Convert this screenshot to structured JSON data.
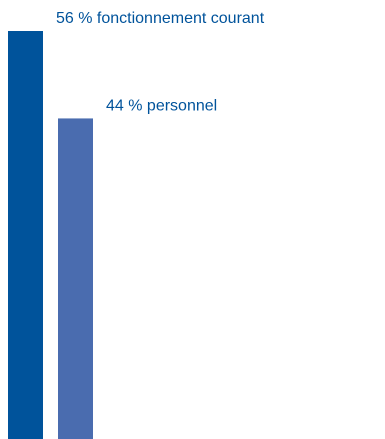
{
  "chart_data": {
    "type": "bar",
    "orientation": "vertical",
    "title": "",
    "xlabel": "",
    "ylabel": "",
    "ylim": [
      0,
      56
    ],
    "grid": false,
    "legend": "none",
    "bars": [
      {
        "value": 56,
        "label": "56 % fonctionnement courant",
        "color": "#00539b"
      },
      {
        "value": 44,
        "label": "44 % personnel",
        "color": "#4a6caf"
      }
    ],
    "label_color": "#00539b"
  }
}
